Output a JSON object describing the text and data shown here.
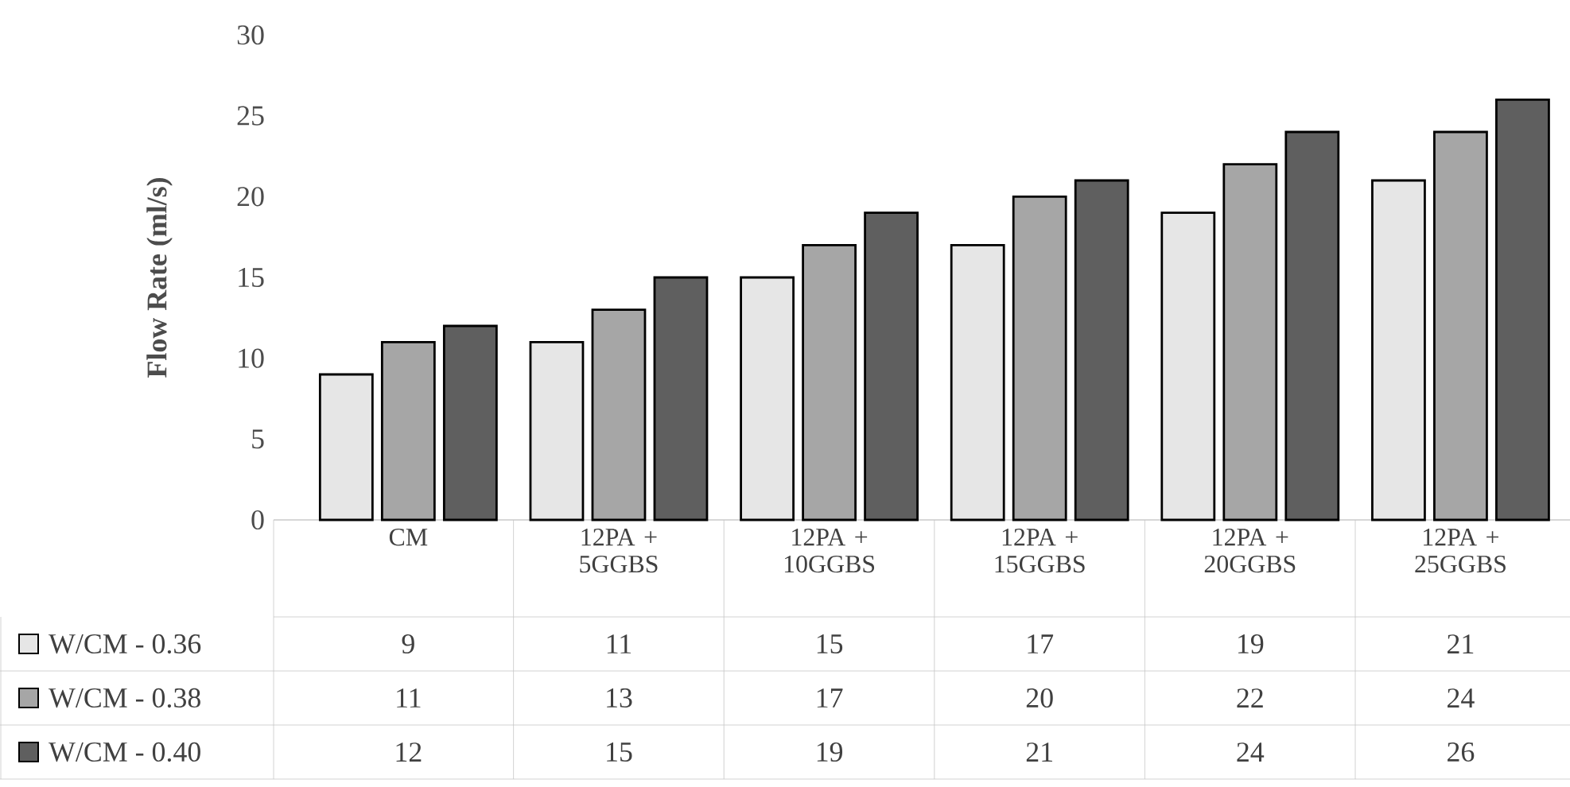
{
  "chart_data": {
    "type": "bar",
    "ylabel": "Flow Rate (ml/s)",
    "categories": [
      "CM",
      "12PA + 5GGBS",
      "12PA + 10GGBS",
      "12PA + 15GGBS",
      "12PA + 20GGBS",
      "12PA + 25GGBS"
    ],
    "series": [
      {
        "name": "W/CM - 0.36",
        "color": "#e6e6e6",
        "values": [
          9,
          11,
          15,
          17,
          19,
          21
        ]
      },
      {
        "name": "W/CM - 0.38",
        "color": "#a6a6a6",
        "values": [
          11,
          13,
          17,
          20,
          22,
          24
        ]
      },
      {
        "name": "W/CM - 0.40",
        "color": "#5f5f5f",
        "values": [
          12,
          15,
          19,
          21,
          24,
          26
        ]
      }
    ],
    "ylim": [
      0,
      30
    ],
    "yticks": [
      0,
      5,
      10,
      15,
      20,
      25,
      30
    ],
    "data_labels": true,
    "legend": "bottom",
    "grid": false
  }
}
